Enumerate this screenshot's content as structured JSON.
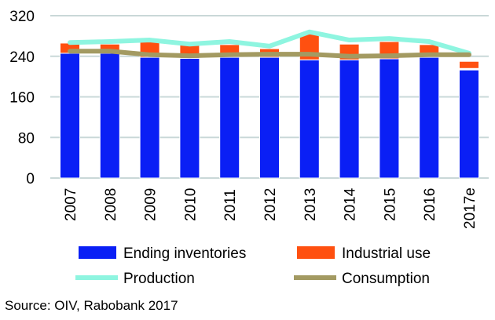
{
  "chart_data": {
    "type": "bar",
    "categories": [
      "2007",
      "2008",
      "2009",
      "2010",
      "2011",
      "2012",
      "2013",
      "2014",
      "2015",
      "2016",
      "2017e"
    ],
    "ylim": [
      0,
      320
    ],
    "yticks": [
      "0",
      "80",
      "160",
      "240",
      "320"
    ],
    "grid": true,
    "legend_placement": "bottom",
    "series": [
      {
        "name": "Ending inventories",
        "kind": "bar",
        "color": "#0a1ff5",
        "values": [
          246,
          246,
          238,
          236,
          238,
          238,
          233,
          233,
          235,
          238,
          213
        ]
      },
      {
        "name": "Industrial use",
        "kind": "bar-stacked",
        "color": "#ff5010",
        "values": [
          20,
          18,
          37,
          33,
          25,
          17,
          51,
          31,
          34,
          25,
          14
        ]
      },
      {
        "name": "Production",
        "kind": "line",
        "color": "#8ef5e0",
        "values": [
          267,
          269,
          272,
          264,
          269,
          260,
          288,
          272,
          275,
          269,
          246
        ]
      },
      {
        "name": "Consumption",
        "kind": "line",
        "color": "#a39a62",
        "values": [
          250,
          250,
          243,
          241,
          243,
          244,
          244,
          240,
          241,
          243,
          243
        ]
      }
    ]
  },
  "source": "Source: OIV, Rabobank 2017"
}
